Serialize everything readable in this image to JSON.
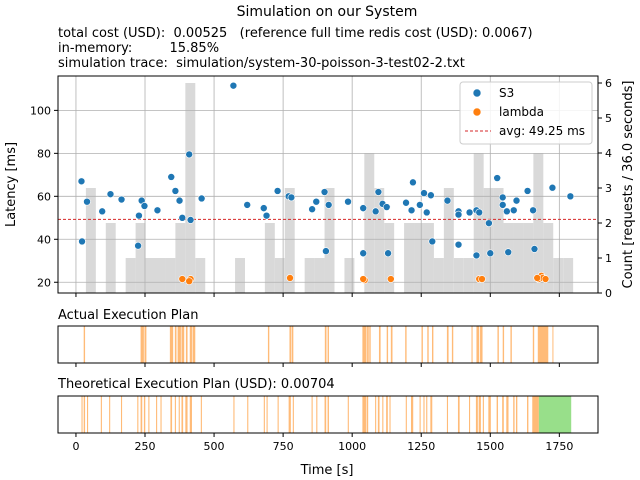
{
  "title": "Simulation on our System",
  "info": {
    "line1": "total cost (USD):  0.00525   (reference full time redis cost (USD): 0.0067)",
    "line2": "in-memory:         15.85%",
    "line3": "simulation trace:  simulation/system-30-poisson-3-test02-2.txt"
  },
  "colors": {
    "s3": "#1f77b4",
    "lambda": "#ff7f0e",
    "avg": "#d62728",
    "hist": "#d9d9d9",
    "plan": "#ffbb78",
    "plan_green": "#98df8a"
  },
  "chart_data": [
    {
      "type": "scatter",
      "xlabel": "",
      "ylabel": "Latency [ms]",
      "y2label": "Count [requests / 36.0 seconds]",
      "xlim": [
        -65,
        1890
      ],
      "ylim": [
        15,
        116
      ],
      "y2lim": [
        0,
        6.2
      ],
      "xticks": [
        0,
        250,
        500,
        750,
        1000,
        1250,
        1500,
        1750
      ],
      "yticks": [
        20,
        40,
        60,
        80,
        100
      ],
      "y2ticks": [
        0,
        1,
        2,
        3,
        4,
        5,
        6
      ],
      "grid": true,
      "legend": "top-right",
      "legend_labels": {
        "s3": "S3",
        "lambda": "lambda",
        "avg": "avg: 49.25 ms"
      },
      "avg_line": 49.25,
      "histogram": {
        "bin_width": 36,
        "bins": [
          {
            "x": 36,
            "count": 3
          },
          {
            "x": 108,
            "count": 2
          },
          {
            "x": 180,
            "count": 1
          },
          {
            "x": 216,
            "count": 2
          },
          {
            "x": 252,
            "count": 1
          },
          {
            "x": 288,
            "count": 1
          },
          {
            "x": 324,
            "count": 1
          },
          {
            "x": 360,
            "count": 2
          },
          {
            "x": 396,
            "count": 6
          },
          {
            "x": 432,
            "count": 1
          },
          {
            "x": 576,
            "count": 1
          },
          {
            "x": 684,
            "count": 2
          },
          {
            "x": 720,
            "count": 1
          },
          {
            "x": 756,
            "count": 3
          },
          {
            "x": 828,
            "count": 1
          },
          {
            "x": 864,
            "count": 1
          },
          {
            "x": 900,
            "count": 3
          },
          {
            "x": 972,
            "count": 1
          },
          {
            "x": 1044,
            "count": 4
          },
          {
            "x": 1080,
            "count": 3
          },
          {
            "x": 1116,
            "count": 2
          },
          {
            "x": 1188,
            "count": 2
          },
          {
            "x": 1224,
            "count": 2
          },
          {
            "x": 1260,
            "count": 2
          },
          {
            "x": 1296,
            "count": 1
          },
          {
            "x": 1332,
            "count": 3
          },
          {
            "x": 1368,
            "count": 1
          },
          {
            "x": 1404,
            "count": 1
          },
          {
            "x": 1440,
            "count": 4
          },
          {
            "x": 1476,
            "count": 3
          },
          {
            "x": 1512,
            "count": 3
          },
          {
            "x": 1548,
            "count": 2
          },
          {
            "x": 1584,
            "count": 2
          },
          {
            "x": 1620,
            "count": 2
          },
          {
            "x": 1656,
            "count": 4
          },
          {
            "x": 1692,
            "count": 2
          },
          {
            "x": 1728,
            "count": 1
          },
          {
            "x": 1764,
            "count": 1
          }
        ]
      },
      "series": [
        {
          "name": "S3",
          "points": [
            [
              20,
              67
            ],
            [
              22,
              39
            ],
            [
              40,
              57.5
            ],
            [
              95,
              53
            ],
            [
              125,
              61
            ],
            [
              165,
              58.5
            ],
            [
              225,
              37
            ],
            [
              228,
              51
            ],
            [
              238,
              58
            ],
            [
              248,
              55.5
            ],
            [
              295,
              53.5
            ],
            [
              345,
              69
            ],
            [
              360,
              62.5
            ],
            [
              375,
              58
            ],
            [
              385,
              50
            ],
            [
              410,
              79.5
            ],
            [
              415,
              49
            ],
            [
              455,
              59
            ],
            [
              570,
              111.5
            ],
            [
              620,
              56
            ],
            [
              680,
              54.5
            ],
            [
              690,
              51
            ],
            [
              730,
              62.5
            ],
            [
              770,
              60
            ],
            [
              780,
              59.5
            ],
            [
              855,
              54
            ],
            [
              870,
              57.5
            ],
            [
              900,
              62
            ],
            [
              905,
              34.5
            ],
            [
              915,
              56
            ],
            [
              985,
              57.5
            ],
            [
              1040,
              54.5
            ],
            [
              1040,
              33.5
            ],
            [
              1085,
              53
            ],
            [
              1095,
              62
            ],
            [
              1110,
              56.5
            ],
            [
              1125,
              55
            ],
            [
              1130,
              33.5
            ],
            [
              1195,
              57
            ],
            [
              1215,
              53.5
            ],
            [
              1220,
              66.5
            ],
            [
              1245,
              56
            ],
            [
              1260,
              61.5
            ],
            [
              1270,
              52.5
            ],
            [
              1285,
              60.5
            ],
            [
              1290,
              39
            ],
            [
              1345,
              58
            ],
            [
              1385,
              53
            ],
            [
              1385,
              51.5
            ],
            [
              1385,
              37.5
            ],
            [
              1425,
              52.5
            ],
            [
              1450,
              53.5
            ],
            [
              1450,
              32.5
            ],
            [
              1460,
              52.5
            ],
            [
              1495,
              47.5
            ],
            [
              1500,
              33.5
            ],
            [
              1525,
              68.5
            ],
            [
              1545,
              59.5
            ],
            [
              1545,
              56
            ],
            [
              1560,
              53
            ],
            [
              1565,
              34
            ],
            [
              1585,
              53.5
            ],
            [
              1595,
              58
            ],
            [
              1635,
              62.5
            ],
            [
              1655,
              53.5
            ],
            [
              1660,
              35.5
            ],
            [
              1725,
              64
            ],
            [
              1790,
              60
            ]
          ]
        },
        {
          "name": "lambda",
          "points": [
            [
              385,
              21.5
            ],
            [
              415,
              21.5
            ],
            [
              410,
              20.5
            ],
            [
              775,
              22
            ],
            [
              1045,
              21
            ],
            [
              1040,
              21.5
            ],
            [
              1140,
              21.5
            ],
            [
              1460,
              21.5
            ],
            [
              1470,
              21.5
            ],
            [
              1675,
              21.5
            ],
            [
              1685,
              23
            ],
            [
              1690,
              22
            ],
            [
              1700,
              21.5
            ],
            [
              1670,
              22
            ]
          ]
        }
      ]
    },
    {
      "type": "bar",
      "title": "Actual Execution Plan",
      "xlim": [
        -65,
        1890
      ],
      "intervals": [
        [
          28,
          33
        ],
        [
          234,
          246
        ],
        [
          248,
          255
        ],
        [
          340,
          352
        ],
        [
          358,
          364
        ],
        [
          368,
          380
        ],
        [
          382,
          392
        ],
        [
          398,
          404
        ],
        [
          412,
          420
        ],
        [
          422,
          432
        ],
        [
          695,
          700
        ],
        [
          773,
          779
        ],
        [
          781,
          787
        ],
        [
          901,
          907
        ],
        [
          911,
          916
        ],
        [
          1037,
          1052
        ],
        [
          1054,
          1060
        ],
        [
          1062,
          1067
        ],
        [
          1097,
          1103
        ],
        [
          1125,
          1130
        ],
        [
          1140,
          1146
        ],
        [
          1192,
          1197
        ],
        [
          1251,
          1256
        ],
        [
          1272,
          1277
        ],
        [
          1289,
          1294
        ],
        [
          1343,
          1349
        ],
        [
          1361,
          1366
        ],
        [
          1432,
          1436
        ],
        [
          1450,
          1460
        ],
        [
          1463,
          1472
        ],
        [
          1526,
          1531
        ],
        [
          1545,
          1550
        ],
        [
          1573,
          1578
        ],
        [
          1654,
          1659
        ],
        [
          1672,
          1710
        ],
        [
          1725,
          1728
        ]
      ]
    },
    {
      "type": "bar",
      "title": "Theoretical Execution Plan (USD): 0.00704",
      "xlabel": "Time [s]",
      "xlim": [
        -65,
        1890
      ],
      "xticks": [
        0,
        250,
        500,
        750,
        1000,
        1250,
        1500,
        1750
      ],
      "green_interval": [
        1676,
        1793
      ],
      "intervals": [
        [
          20,
          24
        ],
        [
          28,
          33
        ],
        [
          40,
          44
        ],
        [
          90,
          94
        ],
        [
          120,
          124
        ],
        [
          163,
          167
        ],
        [
          222,
          226
        ],
        [
          234,
          240
        ],
        [
          246,
          251
        ],
        [
          262,
          266
        ],
        [
          290,
          294
        ],
        [
          306,
          310
        ],
        [
          342,
          348
        ],
        [
          358,
          362
        ],
        [
          372,
          376
        ],
        [
          382,
          388
        ],
        [
          396,
          404
        ],
        [
          412,
          420
        ],
        [
          452,
          456
        ],
        [
          570,
          574
        ],
        [
          620,
          624
        ],
        [
          680,
          684
        ],
        [
          690,
          694
        ],
        [
          730,
          734
        ],
        [
          770,
          778
        ],
        [
          785,
          789
        ],
        [
          853,
          857
        ],
        [
          870,
          874
        ],
        [
          900,
          906
        ],
        [
          911,
          916
        ],
        [
          984,
          988
        ],
        [
          1037,
          1050
        ],
        [
          1052,
          1058
        ],
        [
          1083,
          1087
        ],
        [
          1093,
          1099
        ],
        [
          1109,
          1113
        ],
        [
          1123,
          1129
        ],
        [
          1135,
          1139
        ],
        [
          1194,
          1198
        ],
        [
          1213,
          1221
        ],
        [
          1244,
          1248
        ],
        [
          1258,
          1262
        ],
        [
          1268,
          1272
        ],
        [
          1283,
          1290
        ],
        [
          1343,
          1347
        ],
        [
          1383,
          1389
        ],
        [
          1423,
          1427
        ],
        [
          1448,
          1455
        ],
        [
          1458,
          1466
        ],
        [
          1473,
          1477
        ],
        [
          1493,
          1502
        ],
        [
          1523,
          1528
        ],
        [
          1543,
          1549
        ],
        [
          1558,
          1566
        ],
        [
          1583,
          1588
        ],
        [
          1593,
          1598
        ],
        [
          1633,
          1638
        ],
        [
          1652,
          1676
        ]
      ]
    }
  ]
}
